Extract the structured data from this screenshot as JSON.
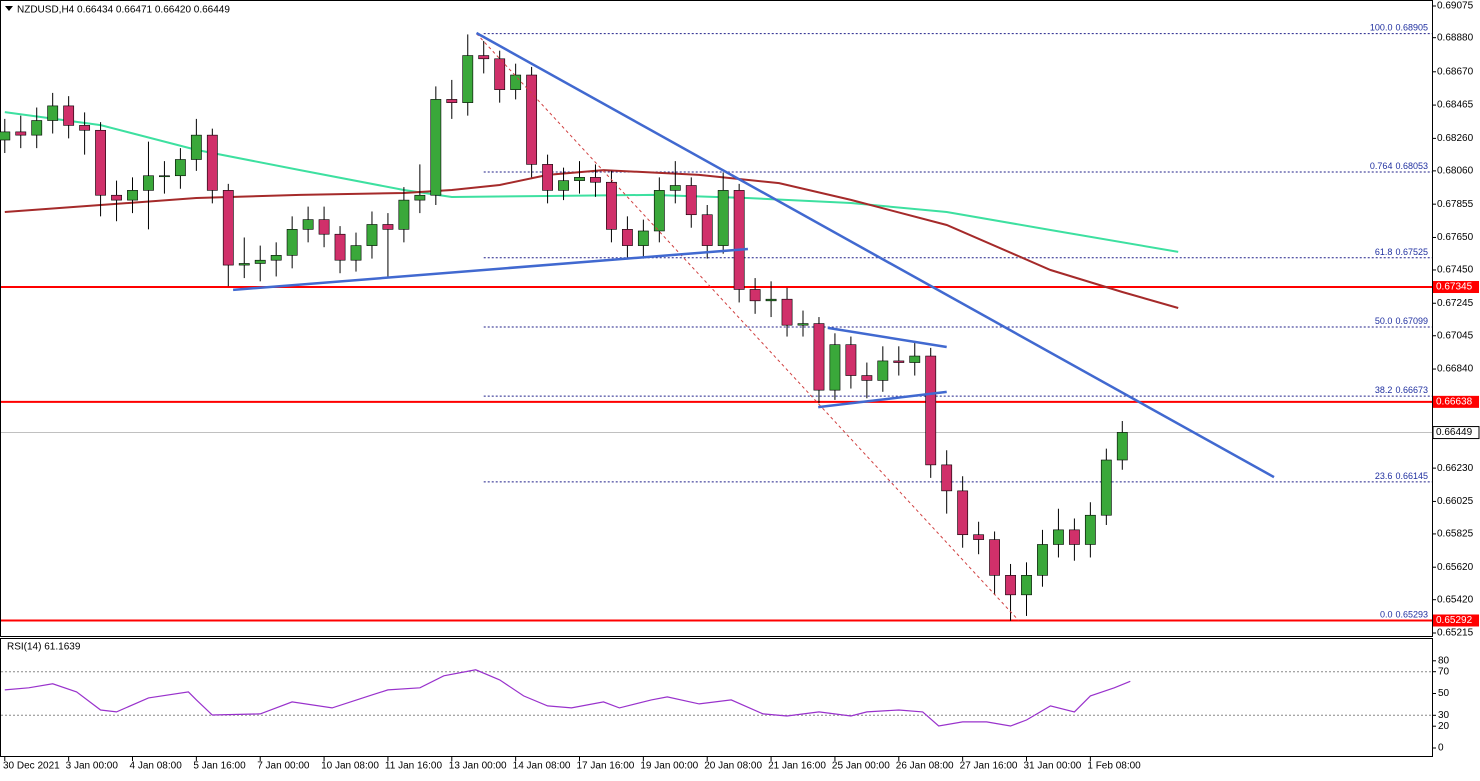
{
  "chart_data": [
    {
      "type": "candlestick",
      "title": "NZDUSD,H4  0.66434 0.66471 0.66420 0.66449",
      "bull_color": "#3aa83a",
      "bear_color": "#d0306a",
      "x": [
        0,
        2,
        4,
        6,
        8,
        10,
        12,
        14,
        16,
        18,
        20,
        22,
        24,
        26,
        28,
        30,
        32,
        34,
        36,
        38,
        40,
        42,
        44,
        46,
        48,
        50,
        52,
        54,
        56,
        58,
        60,
        62,
        64,
        66,
        68,
        70,
        72,
        74,
        76,
        78,
        80,
        82,
        84,
        86,
        88,
        90,
        92,
        94,
        96,
        98,
        100,
        102,
        104,
        106,
        108,
        110,
        112,
        114,
        116,
        118,
        120,
        122,
        124,
        126,
        128,
        130,
        132,
        134,
        136,
        138,
        140
      ],
      "open": [
        0.6825,
        0.683,
        0.6828,
        0.6837,
        0.6846,
        0.6834,
        0.6831,
        0.6791,
        0.6788,
        0.6794,
        0.6803,
        0.6803,
        0.6813,
        0.6828,
        0.6794,
        0.6748,
        0.6749,
        0.6751,
        0.6754,
        0.677,
        0.6776,
        0.6767,
        0.6751,
        0.676,
        0.6773,
        0.677,
        0.6788,
        0.6791,
        0.685,
        0.6848,
        0.6877,
        0.6875,
        0.6856,
        0.6865,
        0.681,
        0.6794,
        0.68,
        0.6802,
        0.6799,
        0.677,
        0.676,
        0.6769,
        0.6794,
        0.6797,
        0.6779,
        0.676,
        0.6794,
        0.6733,
        0.6726,
        0.6727,
        0.6711,
        0.6712,
        0.6671,
        0.6699,
        0.668,
        0.6677,
        0.6689,
        0.6688,
        0.6692,
        0.6625,
        0.6609,
        0.6582,
        0.6579,
        0.6557,
        0.6545,
        0.6557,
        0.6576,
        0.6585,
        0.6576,
        0.6594,
        0.6628
      ],
      "high": [
        0.6838,
        0.684,
        0.6845,
        0.6854,
        0.6852,
        0.6842,
        0.6836,
        0.68,
        0.6802,
        0.6824,
        0.6812,
        0.682,
        0.6838,
        0.6832,
        0.6798,
        0.6765,
        0.676,
        0.6762,
        0.6778,
        0.6784,
        0.6784,
        0.6772,
        0.6768,
        0.6781,
        0.678,
        0.6796,
        0.681,
        0.6858,
        0.6862,
        0.689,
        0.6886,
        0.688,
        0.6872,
        0.687,
        0.6816,
        0.6808,
        0.6812,
        0.681,
        0.6806,
        0.6778,
        0.6776,
        0.6802,
        0.6812,
        0.6802,
        0.6785,
        0.6805,
        0.6798,
        0.674,
        0.6738,
        0.6734,
        0.672,
        0.6716,
        0.6706,
        0.6704,
        0.6688,
        0.6698,
        0.6698,
        0.67,
        0.6697,
        0.6634,
        0.6618,
        0.659,
        0.6584,
        0.6564,
        0.6565,
        0.6585,
        0.6598,
        0.6592,
        0.6602,
        0.6635,
        0.6652
      ],
      "low": [
        0.6817,
        0.682,
        0.682,
        0.6829,
        0.6826,
        0.6816,
        0.6778,
        0.6775,
        0.678,
        0.677,
        0.6792,
        0.6795,
        0.6806,
        0.6786,
        0.6735,
        0.674,
        0.6738,
        0.6741,
        0.6746,
        0.6762,
        0.6759,
        0.6743,
        0.6744,
        0.6752,
        0.674,
        0.6762,
        0.678,
        0.6785,
        0.6838,
        0.684,
        0.6866,
        0.6848,
        0.685,
        0.6802,
        0.6786,
        0.6788,
        0.6792,
        0.679,
        0.6762,
        0.6752,
        0.6752,
        0.6762,
        0.6786,
        0.6771,
        0.6752,
        0.6755,
        0.6725,
        0.6718,
        0.6716,
        0.6704,
        0.6704,
        0.6663,
        0.6665,
        0.6672,
        0.6666,
        0.667,
        0.668,
        0.668,
        0.6617,
        0.6595,
        0.6574,
        0.657,
        0.6545,
        0.6529,
        0.6532,
        0.655,
        0.6568,
        0.6566,
        0.6568,
        0.6588,
        0.6622
      ],
      "close": [
        0.683,
        0.6828,
        0.6837,
        0.6846,
        0.6834,
        0.6831,
        0.6791,
        0.6788,
        0.6794,
        0.6803,
        0.6803,
        0.6813,
        0.6828,
        0.6794,
        0.6748,
        0.6749,
        0.6751,
        0.6754,
        0.677,
        0.6776,
        0.6767,
        0.6751,
        0.676,
        0.6773,
        0.677,
        0.6788,
        0.6791,
        0.685,
        0.6848,
        0.6877,
        0.6875,
        0.6856,
        0.6865,
        0.681,
        0.6794,
        0.68,
        0.6802,
        0.6799,
        0.677,
        0.676,
        0.6769,
        0.6794,
        0.6797,
        0.6779,
        0.676,
        0.6794,
        0.6733,
        0.6726,
        0.6727,
        0.6711,
        0.6712,
        0.6671,
        0.6699,
        0.668,
        0.6677,
        0.6689,
        0.6688,
        0.6692,
        0.6625,
        0.6609,
        0.6582,
        0.6579,
        0.6557,
        0.6545,
        0.6557,
        0.6576,
        0.6585,
        0.6576,
        0.6594,
        0.6628,
        0.6645
      ],
      "series": [
        {
          "color": "#3de0a0",
          "x": [
            0,
            12,
            24,
            37,
            50,
            56,
            68,
            81,
            93,
            106,
            118,
            131,
            147
          ],
          "values": [
            0.68422,
            0.68342,
            0.68189,
            0.68065,
            0.67942,
            0.67899,
            0.67905,
            0.67912,
            0.67893,
            0.67862,
            0.67807,
            0.67696,
            0.67561
          ]
        },
        {
          "color": "#a52a2a",
          "x": [
            0,
            12,
            24,
            37,
            50,
            56,
            62,
            68,
            75,
            87,
            97,
            106,
            118,
            131,
            140,
            147
          ],
          "values": [
            0.67807,
            0.6785,
            0.67893,
            0.67912,
            0.67924,
            0.67942,
            0.67973,
            0.68035,
            0.68065,
            0.68035,
            0.67985,
            0.67881,
            0.67727,
            0.6745,
            0.67314,
            0.67216
          ]
        }
      ],
      "trendlines": [
        {
          "color": "#4169d0",
          "x": [
            59.1,
            159
          ],
          "values": [
            0.68909,
            0.66175
          ]
        },
        {
          "color": "#4169d0",
          "x": [
            28.6,
            93.1
          ],
          "values": [
            0.67327,
            0.67579
          ]
        },
        {
          "color": "#4169d0",
          "x": [
            103.1,
            118
          ],
          "values": [
            0.67093,
            0.66976
          ]
        },
        {
          "color": "#4169d0",
          "x": [
            101.9,
            118
          ],
          "values": [
            0.66606,
            0.66699
          ]
        }
      ],
      "fib_line": {
        "color": "#d04040",
        "x": [
          59.1,
          127
        ],
        "values": [
          0.68905,
          0.65293
        ]
      },
      "fib_levels": [
        {
          "level": "100.0",
          "price": 0.68905
        },
        {
          "level": "0.764",
          "price": 0.68053
        },
        {
          "level": "61.8",
          "price": 0.67525
        },
        {
          "level": "50.0",
          "price": 0.67099
        },
        {
          "level": "38.2",
          "price": 0.66673
        },
        {
          "level": "23.6",
          "price": 0.66145
        },
        {
          "level": "0.0",
          "price": 0.65293
        }
      ],
      "fib_start_x": 60,
      "hlines": [
        {
          "price": 0.67345,
          "color": "#ff0000"
        },
        {
          "price": 0.66638,
          "color": "#ff0000"
        },
        {
          "price": 0.65292,
          "color": "#ff0000"
        }
      ],
      "last_price": 0.66449,
      "xlim": [
        -0.6,
        178.8
      ],
      "ylim": [
        0.65215,
        0.69075
      ],
      "yticks": [
        0.69075,
        {
          "value": 0.6888,
          "label": "0.68880"
        },
        {
          "value": 0.6867,
          "label": "0.68670"
        },
        0.68465,
        {
          "value": 0.6826,
          "label": "0.68260"
        },
        {
          "value": 0.6806,
          "label": "0.68060"
        },
        0.67855,
        {
          "value": 0.6765,
          "label": "0.67650"
        },
        {
          "value": 0.6745,
          "label": "0.67450"
        },
        0.67245,
        0.67045,
        {
          "value": 0.6684,
          "label": "0.66840"
        },
        {
          "value": 0.6623,
          "label": "0.66230"
        },
        0.66025,
        0.65825,
        {
          "value": 0.6562,
          "label": "0.65620"
        },
        {
          "value": 0.6542,
          "label": "0.65420"
        },
        0.65215
      ],
      "xticks": [
        {
          "value": 0,
          "label": "30 Dec 2021"
        },
        {
          "value": 8,
          "label": "3 Jan 00:00"
        },
        {
          "value": 16,
          "label": "4 Jan 08:00"
        },
        {
          "value": 24,
          "label": "5 Jan 16:00"
        },
        {
          "value": 32,
          "label": "7 Jan 00:00"
        },
        {
          "value": 40,
          "label": "10 Jan 08:00"
        },
        {
          "value": 48,
          "label": "11 Jan 16:00"
        },
        {
          "value": 56,
          "label": "13 Jan 00:00"
        },
        {
          "value": 64,
          "label": "14 Jan 08:00"
        },
        {
          "value": 72,
          "label": "17 Jan 16:00"
        },
        {
          "value": 80,
          "label": "19 Jan 00:00"
        },
        {
          "value": 88,
          "label": "20 Jan 08:00"
        },
        {
          "value": 96,
          "label": "21 Jan 16:00"
        },
        {
          "value": 104,
          "label": "25 Jan 00:00"
        },
        {
          "value": 112,
          "label": "26 Jan 08:00"
        },
        {
          "value": 120,
          "label": "27 Jan 16:00"
        },
        {
          "value": 128,
          "label": "31 Jan 00:00"
        },
        {
          "value": 136,
          "label": "1 Feb 08:00"
        }
      ]
    },
    {
      "type": "line",
      "title": "RSI(14) 61.1639",
      "color": "#9932cc",
      "x": [
        0,
        3,
        6,
        9,
        12,
        14,
        18,
        23,
        24,
        26,
        32,
        36,
        41,
        46,
        48,
        52,
        55,
        59,
        62,
        65,
        68,
        71,
        75,
        77,
        81,
        83,
        87,
        91,
        95,
        98,
        102,
        106,
        108,
        112,
        115,
        117,
        120,
        123,
        126,
        128,
        131,
        134,
        136,
        139,
        141
      ],
      "values": [
        53.3,
        55.2,
        58.9,
        51.5,
        34.9,
        33.1,
        46.0,
        51.5,
        44.1,
        30.3,
        31.3,
        42.3,
        36.8,
        48.7,
        53.3,
        55.2,
        66.2,
        71.7,
        62.5,
        47.8,
        38.6,
        36.8,
        42.3,
        36.8,
        44.1,
        46.9,
        40.5,
        44.1,
        31.3,
        29.4,
        33.1,
        29.4,
        33.1,
        34.9,
        33.1,
        20.2,
        23.9,
        23.9,
        20.2,
        25.7,
        38.6,
        33.1,
        47.8,
        55.2,
        61.2
      ],
      "levels": [
        70,
        30
      ],
      "ylim": [
        0,
        100
      ],
      "yticks": [
        80,
        70,
        50,
        30,
        20,
        0
      ]
    }
  ]
}
